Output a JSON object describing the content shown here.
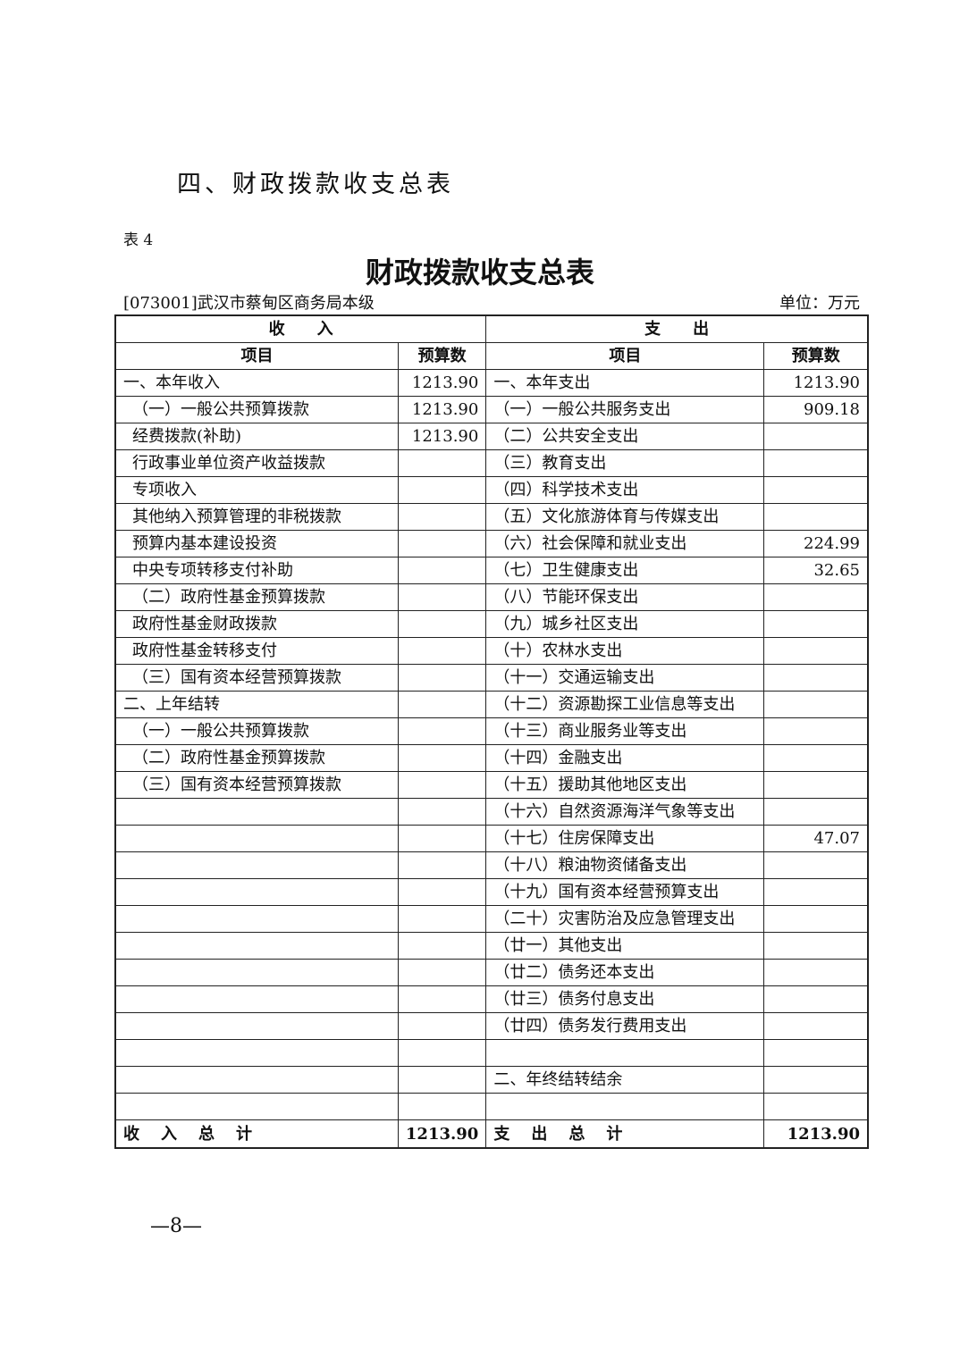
{
  "section_title": "四、财政拨款收支总表",
  "table_no": "表 4",
  "title": "财政拨款收支总表",
  "unit_code": "[073001]武汉市蔡甸区商务局本级",
  "unit_label": "单位：万元",
  "header": {
    "income": "收　　入",
    "expense": "支　　出",
    "item": "项目",
    "budget": "预算数"
  },
  "rows": [
    {
      "in": "一、本年收入",
      "in_sub": false,
      "in_val": "1213.90",
      "out": "一、本年支出",
      "out_val": "1213.90"
    },
    {
      "in": "（一）一般公共预算拨款",
      "in_sub": true,
      "in_val": "1213.90",
      "out": "（一）一般公共服务支出",
      "out_val": "909.18"
    },
    {
      "in": "经费拨款(补助)",
      "in_sub": true,
      "in_val": "1213.90",
      "out": "（二）公共安全支出",
      "out_val": ""
    },
    {
      "in": "行政事业单位资产收益拨款",
      "in_sub": true,
      "in_val": "",
      "out": "（三）教育支出",
      "out_val": ""
    },
    {
      "in": "专项收入",
      "in_sub": true,
      "in_val": "",
      "out": "（四）科学技术支出",
      "out_val": ""
    },
    {
      "in": "其他纳入预算管理的非税拨款",
      "in_sub": true,
      "in_val": "",
      "out": "（五）文化旅游体育与传媒支出",
      "out_val": ""
    },
    {
      "in": "预算内基本建设投资",
      "in_sub": true,
      "in_val": "",
      "out": "（六）社会保障和就业支出",
      "out_val": "224.99"
    },
    {
      "in": "中央专项转移支付补助",
      "in_sub": true,
      "in_val": "",
      "out": "（七）卫生健康支出",
      "out_val": "32.65"
    },
    {
      "in": "（二）政府性基金预算拨款",
      "in_sub": true,
      "in_val": "",
      "out": "（八）节能环保支出",
      "out_val": ""
    },
    {
      "in": "政府性基金财政拨款",
      "in_sub": true,
      "in_val": "",
      "out": "（九）城乡社区支出",
      "out_val": ""
    },
    {
      "in": "政府性基金转移支付",
      "in_sub": true,
      "in_val": "",
      "out": "（十）农林水支出",
      "out_val": ""
    },
    {
      "in": "（三）国有资本经营预算拨款",
      "in_sub": true,
      "in_val": "",
      "out": "（十一）交通运输支出",
      "out_val": ""
    },
    {
      "in": "二、上年结转",
      "in_sub": false,
      "in_val": "",
      "out": "（十二）资源勘探工业信息等支出",
      "out_val": ""
    },
    {
      "in": "（一）一般公共预算拨款",
      "in_sub": true,
      "in_val": "",
      "out": "（十三）商业服务业等支出",
      "out_val": ""
    },
    {
      "in": "（二）政府性基金预算拨款",
      "in_sub": true,
      "in_val": "",
      "out": "（十四）金融支出",
      "out_val": ""
    },
    {
      "in": "（三）国有资本经营预算拨款",
      "in_sub": true,
      "in_val": "",
      "out": "（十五）援助其他地区支出",
      "out_val": ""
    },
    {
      "in": "",
      "in_sub": false,
      "in_val": "",
      "out": "（十六）自然资源海洋气象等支出",
      "out_val": ""
    },
    {
      "in": "",
      "in_sub": false,
      "in_val": "",
      "out": "（十七）住房保障支出",
      "out_val": "47.07"
    },
    {
      "in": "",
      "in_sub": false,
      "in_val": "",
      "out": "（十八）粮油物资储备支出",
      "out_val": ""
    },
    {
      "in": "",
      "in_sub": false,
      "in_val": "",
      "out": "（十九）国有资本经营预算支出",
      "out_val": ""
    },
    {
      "in": "",
      "in_sub": false,
      "in_val": "",
      "out": "（二十）灾害防治及应急管理支出",
      "out_val": ""
    },
    {
      "in": "",
      "in_sub": false,
      "in_val": "",
      "out": "（廿一）其他支出",
      "out_val": ""
    },
    {
      "in": "",
      "in_sub": false,
      "in_val": "",
      "out": "（廿二）债务还本支出",
      "out_val": ""
    },
    {
      "in": "",
      "in_sub": false,
      "in_val": "",
      "out": "（廿三）债务付息支出",
      "out_val": ""
    },
    {
      "in": "",
      "in_sub": false,
      "in_val": "",
      "out": "（廿四）债务发行费用支出",
      "out_val": ""
    },
    {
      "in": "",
      "in_sub": false,
      "in_val": "",
      "out": "",
      "out_val": ""
    },
    {
      "in": "",
      "in_sub": false,
      "in_val": "",
      "out": "二、年终结转结余",
      "out_val": ""
    },
    {
      "in": "",
      "in_sub": false,
      "in_val": "",
      "out": "",
      "out_val": ""
    }
  ],
  "total": {
    "in_label": "收入总计",
    "in_val": "1213.90",
    "out_label": "支出总计",
    "out_val": "1213.90"
  },
  "page_number": "—8—"
}
